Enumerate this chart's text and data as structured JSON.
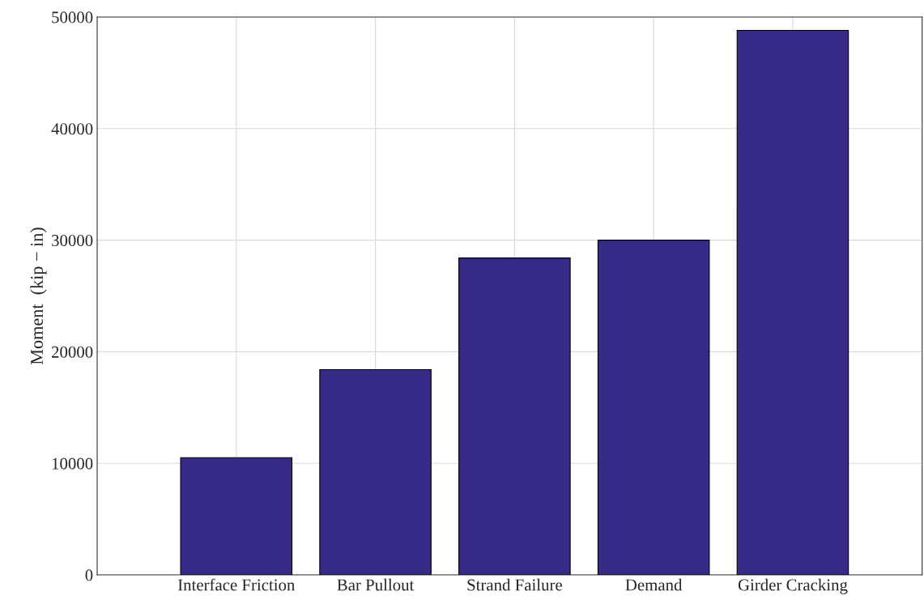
{
  "chart_data": {
    "type": "bar",
    "ylabel": "Moment  (kip − in)",
    "categories": [
      null,
      "Interface Friction",
      "Bar Pullout",
      "Strand Failure",
      "Demand",
      "Girder Cracking"
    ],
    "values": [
      null,
      10500,
      18400,
      28400,
      30000,
      48800
    ],
    "color": "#352a86",
    "ylim": [
      0,
      50000
    ],
    "yticks": [
      0,
      10000,
      20000,
      30000,
      40000,
      50000
    ],
    "grid": true
  }
}
